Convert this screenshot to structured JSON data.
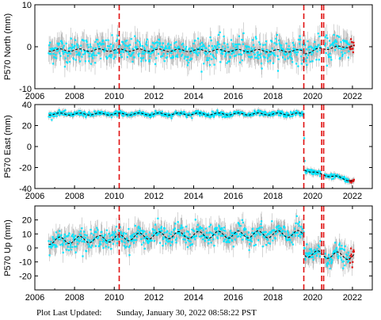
{
  "footer": {
    "prefix": "Plot Last Updated:",
    "timestamp": "Sunday, January 30, 2022 08:58:22 PST"
  },
  "colors": {
    "data_points": "#00e5ff",
    "error_bars": "#b8b8b8",
    "recent_points": "#e01010",
    "model_line": "#000000",
    "offset_lines": "#e01010"
  },
  "chart_data": [
    {
      "type": "scatter",
      "station": "P570",
      "component": "North",
      "ylabel": "P570 North (mm)",
      "xlim": [
        2006,
        2023
      ],
      "ylim": [
        -10,
        10
      ],
      "x_ticks": [
        2006,
        2008,
        2010,
        2012,
        2014,
        2016,
        2018,
        2020,
        2022
      ],
      "y_ticks": [
        -10,
        0,
        10
      ],
      "data_start": 2006.7,
      "data_end": 2022.08,
      "scatter_sd": 1.5,
      "error_bar_halfwidth": 2.2,
      "trend": [
        [
          2006.7,
          -0.8
        ],
        [
          2010.2,
          -0.8
        ],
        [
          2019.55,
          -1.0
        ],
        [
          2019.6,
          -1.5
        ],
        [
          2020.4,
          -0.5
        ],
        [
          2022.08,
          0.2
        ]
      ],
      "seasonal_amplitude": 0.3,
      "offset_lines": [
        2010.25,
        2019.55,
        2020.45,
        2020.55
      ]
    },
    {
      "type": "scatter",
      "station": "P570",
      "component": "East",
      "ylabel": "P570 East (mm)",
      "xlim": [
        2006,
        2023
      ],
      "ylim": [
        -40,
        40
      ],
      "x_ticks": [
        2006,
        2008,
        2010,
        2012,
        2014,
        2016,
        2018,
        2020,
        2022
      ],
      "y_ticks": [
        -40,
        -20,
        0,
        20,
        40
      ],
      "data_start": 2006.7,
      "data_end": 2022.08,
      "scatter_sd": 1.2,
      "error_bar_halfwidth": 2.5,
      "trend": [
        [
          2006.7,
          31
        ],
        [
          2019.55,
          31
        ],
        [
          2019.6,
          -22
        ],
        [
          2020.3,
          -26
        ],
        [
          2021.2,
          -29
        ],
        [
          2022.08,
          -33
        ]
      ],
      "seasonal_amplitude": 1.0,
      "offset_lines": [
        2010.25,
        2019.55,
        2020.45,
        2020.55
      ]
    },
    {
      "type": "scatter",
      "station": "P570",
      "component": "Up",
      "ylabel": "P570 Up (mm)",
      "xlim": [
        2006,
        2023
      ],
      "ylim": [
        -30,
        30
      ],
      "x_ticks": [
        2006,
        2008,
        2010,
        2012,
        2014,
        2016,
        2018,
        2020,
        2022
      ],
      "y_ticks": [
        -20,
        -10,
        0,
        10,
        20
      ],
      "data_start": 2006.7,
      "data_end": 2022.08,
      "scatter_sd": 3.5,
      "error_bar_halfwidth": 6,
      "trend": [
        [
          2006.7,
          5
        ],
        [
          2010.2,
          7
        ],
        [
          2012,
          9
        ],
        [
          2016,
          9.5
        ],
        [
          2019.55,
          10
        ],
        [
          2019.6,
          -4
        ],
        [
          2020.8,
          -5
        ],
        [
          2022.08,
          -6
        ]
      ],
      "seasonal_amplitude": 2.5,
      "offset_lines": [
        2010.25,
        2019.55,
        2020.45,
        2020.55
      ]
    }
  ]
}
